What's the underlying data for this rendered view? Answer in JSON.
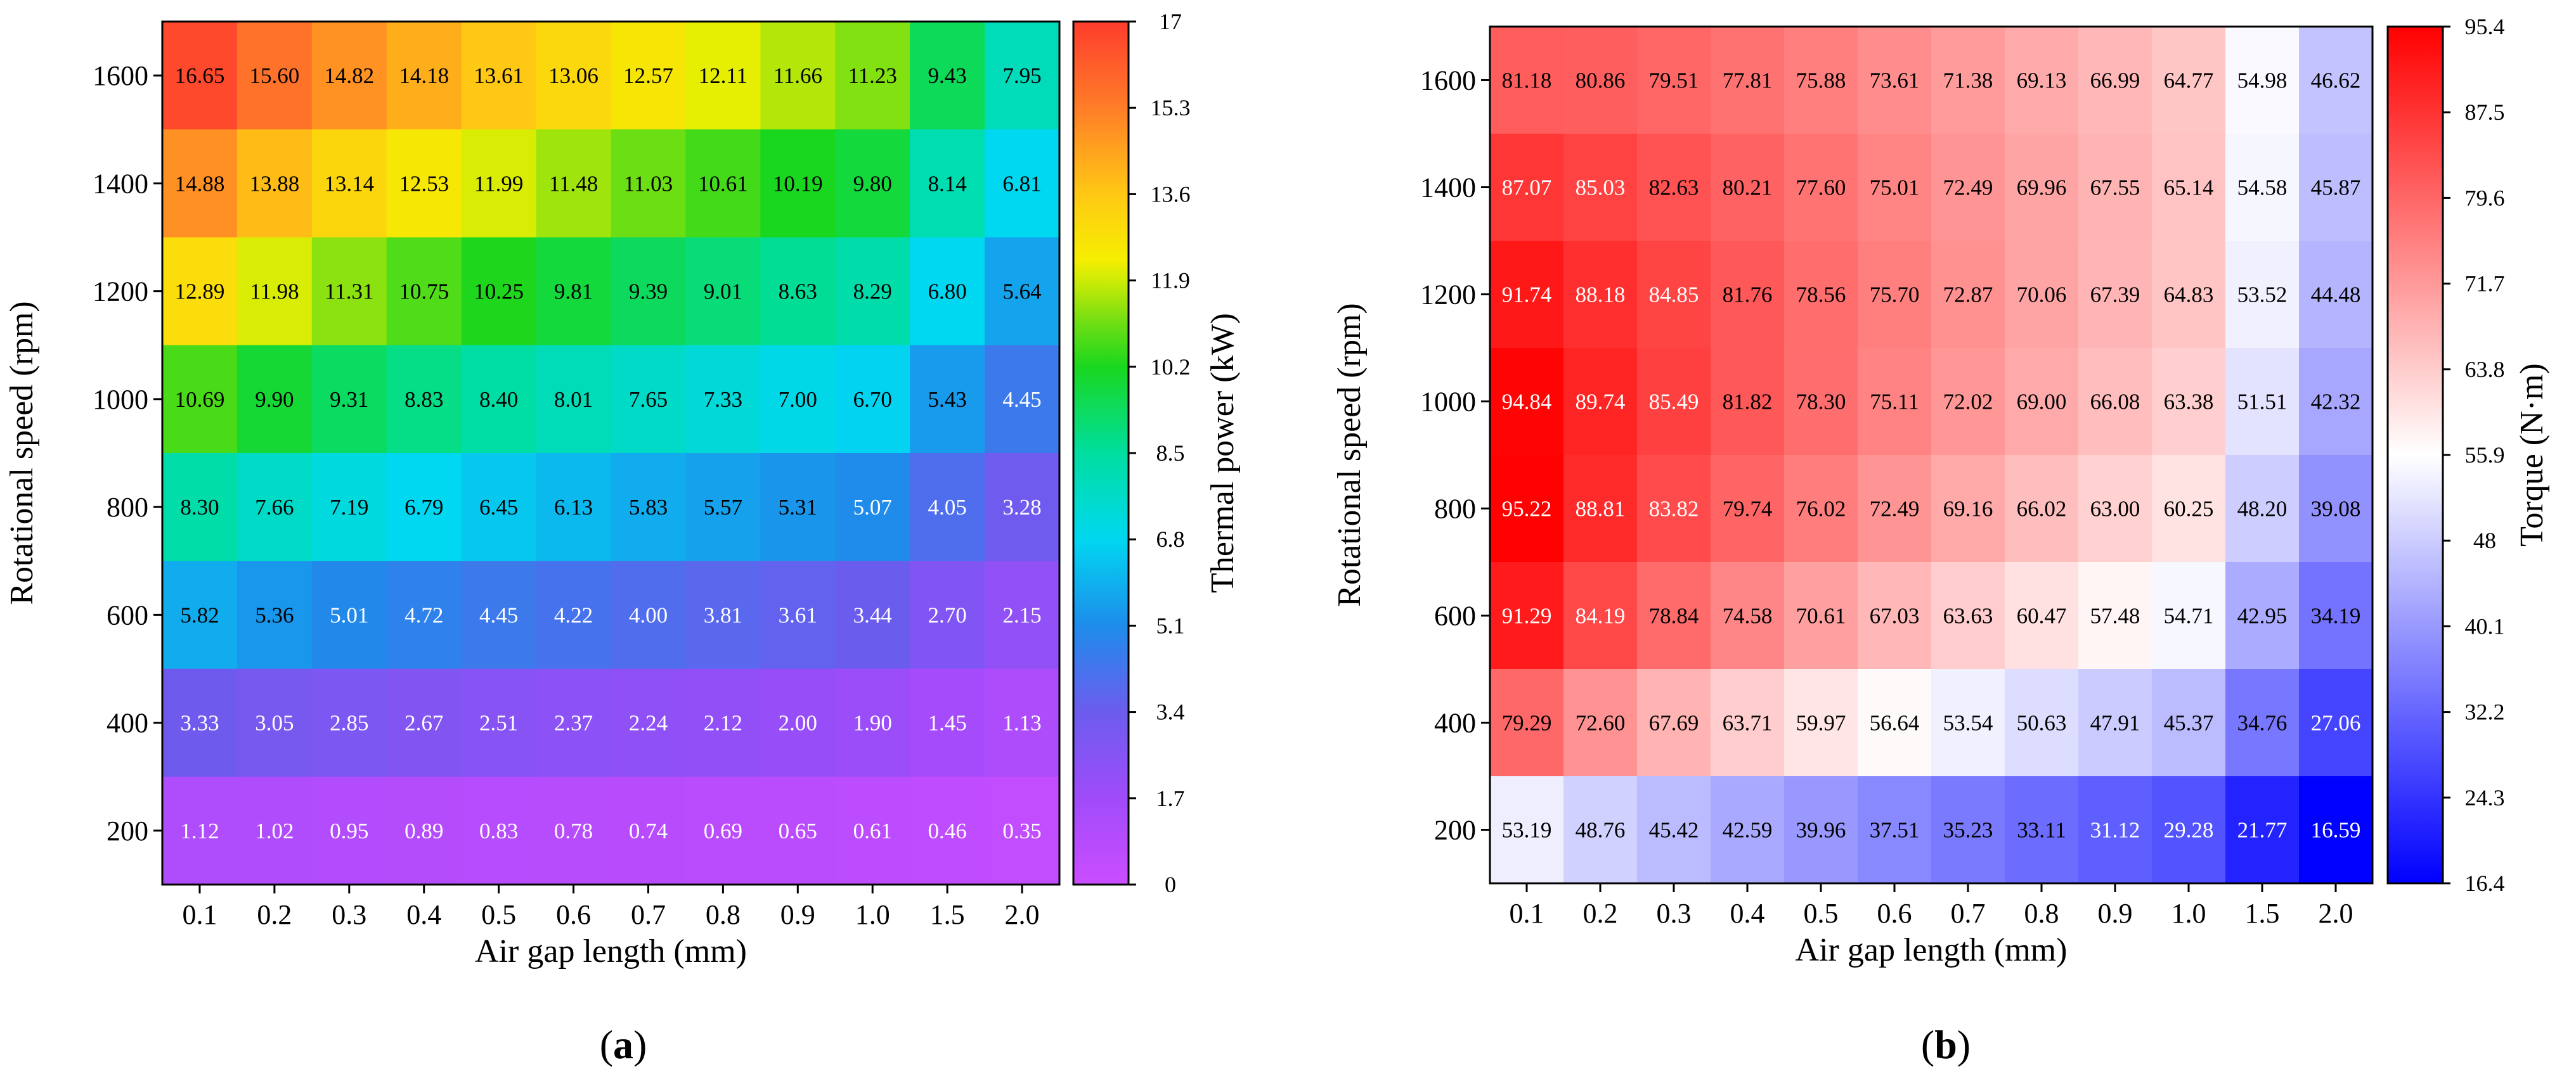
{
  "chart_data": [
    {
      "type": "heatmap",
      "panel_label": "a",
      "xlabel": "Air gap length (mm)",
      "ylabel": "Rotational speed (rpm)",
      "colorbar_label": "Thermal power (kW)",
      "colormap": "rainbow",
      "x_categories": [
        "0.1",
        "0.2",
        "0.3",
        "0.4",
        "0.5",
        "0.6",
        "0.7",
        "0.8",
        "0.9",
        "1.0",
        "1.5",
        "2.0"
      ],
      "y_categories": [
        "1600",
        "1400",
        "1200",
        "1000",
        "800",
        "600",
        "400",
        "200"
      ],
      "vmin": 0,
      "vmax": 17,
      "colorbar_ticks": [
        "17",
        "15.3",
        "13.6",
        "11.9",
        "10.2",
        "8.5",
        "6.8",
        "5.1",
        "3.4",
        "1.7",
        "0"
      ],
      "values": [
        [
          "16.65",
          "15.60",
          "14.82",
          "14.18",
          "13.61",
          "13.06",
          "12.57",
          "12.11",
          "11.66",
          "11.23",
          "9.43",
          "7.95"
        ],
        [
          "14.88",
          "13.88",
          "13.14",
          "12.53",
          "11.99",
          "11.48",
          "11.03",
          "10.61",
          "10.19",
          "9.80",
          "8.14",
          "6.81"
        ],
        [
          "12.89",
          "11.98",
          "11.31",
          "10.75",
          "10.25",
          "9.81",
          "9.39",
          "9.01",
          "8.63",
          "8.29",
          "6.80",
          "5.64"
        ],
        [
          "10.69",
          "9.90",
          "9.31",
          "8.83",
          "8.40",
          "8.01",
          "7.65",
          "7.33",
          "7.00",
          "6.70",
          "5.43",
          "4.45"
        ],
        [
          "8.30",
          "7.66",
          "7.19",
          "6.79",
          "6.45",
          "6.13",
          "5.83",
          "5.57",
          "5.31",
          "5.07",
          "4.05",
          "3.28"
        ],
        [
          "5.82",
          "5.36",
          "5.01",
          "4.72",
          "4.45",
          "4.22",
          "4.00",
          "3.81",
          "3.61",
          "3.44",
          "2.70",
          "2.15"
        ],
        [
          "3.33",
          "3.05",
          "2.85",
          "2.67",
          "2.51",
          "2.37",
          "2.24",
          "2.12",
          "2.00",
          "1.90",
          "1.45",
          "1.13"
        ],
        [
          "1.12",
          "1.02",
          "0.95",
          "0.89",
          "0.83",
          "0.78",
          "0.74",
          "0.69",
          "0.65",
          "0.61",
          "0.46",
          "0.35"
        ]
      ]
    },
    {
      "type": "heatmap",
      "panel_label": "b",
      "xlabel": "Air gap length (mm)",
      "ylabel": "Rotational speed (rpm)",
      "colorbar_label": "Torque (N·m)",
      "colormap": "bwr",
      "x_categories": [
        "0.1",
        "0.2",
        "0.3",
        "0.4",
        "0.5",
        "0.6",
        "0.7",
        "0.8",
        "0.9",
        "1.0",
        "1.5",
        "2.0"
      ],
      "y_categories": [
        "1600",
        "1400",
        "1200",
        "1000",
        "800",
        "600",
        "400",
        "200"
      ],
      "vmin": 16.4,
      "vmax": 95.4,
      "colorbar_ticks": [
        "95.4",
        "87.5",
        "79.6",
        "71.7",
        "63.8",
        "55.9",
        "48",
        "40.1",
        "32.2",
        "24.3",
        "16.4"
      ],
      "values": [
        [
          "81.18",
          "80.86",
          "79.51",
          "77.81",
          "75.88",
          "73.61",
          "71.38",
          "69.13",
          "66.99",
          "64.77",
          "54.98",
          "46.62"
        ],
        [
          "87.07",
          "85.03",
          "82.63",
          "80.21",
          "77.60",
          "75.01",
          "72.49",
          "69.96",
          "67.55",
          "65.14",
          "54.58",
          "45.87"
        ],
        [
          "91.74",
          "88.18",
          "84.85",
          "81.76",
          "78.56",
          "75.70",
          "72.87",
          "70.06",
          "67.39",
          "64.83",
          "53.52",
          "44.48"
        ],
        [
          "94.84",
          "89.74",
          "85.49",
          "81.82",
          "78.30",
          "75.11",
          "72.02",
          "69.00",
          "66.08",
          "63.38",
          "51.51",
          "42.32"
        ],
        [
          "95.22",
          "88.81",
          "83.82",
          "79.74",
          "76.02",
          "72.49",
          "69.16",
          "66.02",
          "63.00",
          "60.25",
          "48.20",
          "39.08"
        ],
        [
          "91.29",
          "84.19",
          "78.84",
          "74.58",
          "70.61",
          "67.03",
          "63.63",
          "60.47",
          "57.48",
          "54.71",
          "42.95",
          "34.19"
        ],
        [
          "79.29",
          "72.60",
          "67.69",
          "63.71",
          "59.97",
          "56.64",
          "53.54",
          "50.63",
          "47.91",
          "45.37",
          "34.76",
          "27.06"
        ],
        [
          "53.19",
          "48.76",
          "45.42",
          "42.59",
          "39.96",
          "37.51",
          "35.23",
          "33.11",
          "31.12",
          "29.28",
          "21.77",
          "16.59"
        ]
      ]
    }
  ]
}
